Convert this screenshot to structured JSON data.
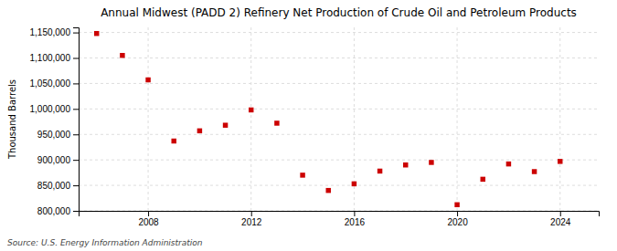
{
  "chart_data": {
    "type": "scatter",
    "title": "Annual Midwest (PADD 2) Refinery Net Production of Crude Oil and Petroleum Products",
    "y_label": "Thousand Barrels",
    "source": "Source: U.S. Energy Information Administration",
    "x": [
      2006,
      2007,
      2008,
      2009,
      2010,
      2011,
      2012,
      2013,
      2014,
      2015,
      2016,
      2017,
      2018,
      2019,
      2020,
      2021,
      2022,
      2023,
      2024
    ],
    "values": [
      1148000,
      1105000,
      1057000,
      937000,
      957000,
      968000,
      998000,
      972000,
      870000,
      840000,
      853000,
      878000,
      890000,
      895000,
      812000,
      862000,
      892000,
      877000,
      897000
    ],
    "color": "#cc0000",
    "marker": "square",
    "xlim": [
      2005.3,
      2025.5
    ],
    "xticks": [
      2008,
      2012,
      2016,
      2020,
      2024
    ],
    "ylim": [
      800000,
      1160000
    ],
    "yticks": [
      {
        "value": 800000,
        "label": "800,000"
      },
      {
        "value": 850000,
        "label": "850,000"
      },
      {
        "value": 900000,
        "label": "900,000"
      },
      {
        "value": 950000,
        "label": "950,000"
      },
      {
        "value": 1000000,
        "label": "1,000,000"
      },
      {
        "value": 1050000,
        "label": "1,050,000"
      },
      {
        "value": 1100000,
        "label": "1,100,000"
      },
      {
        "value": 1150000,
        "label": "1,150,000"
      }
    ],
    "grid": true
  }
}
